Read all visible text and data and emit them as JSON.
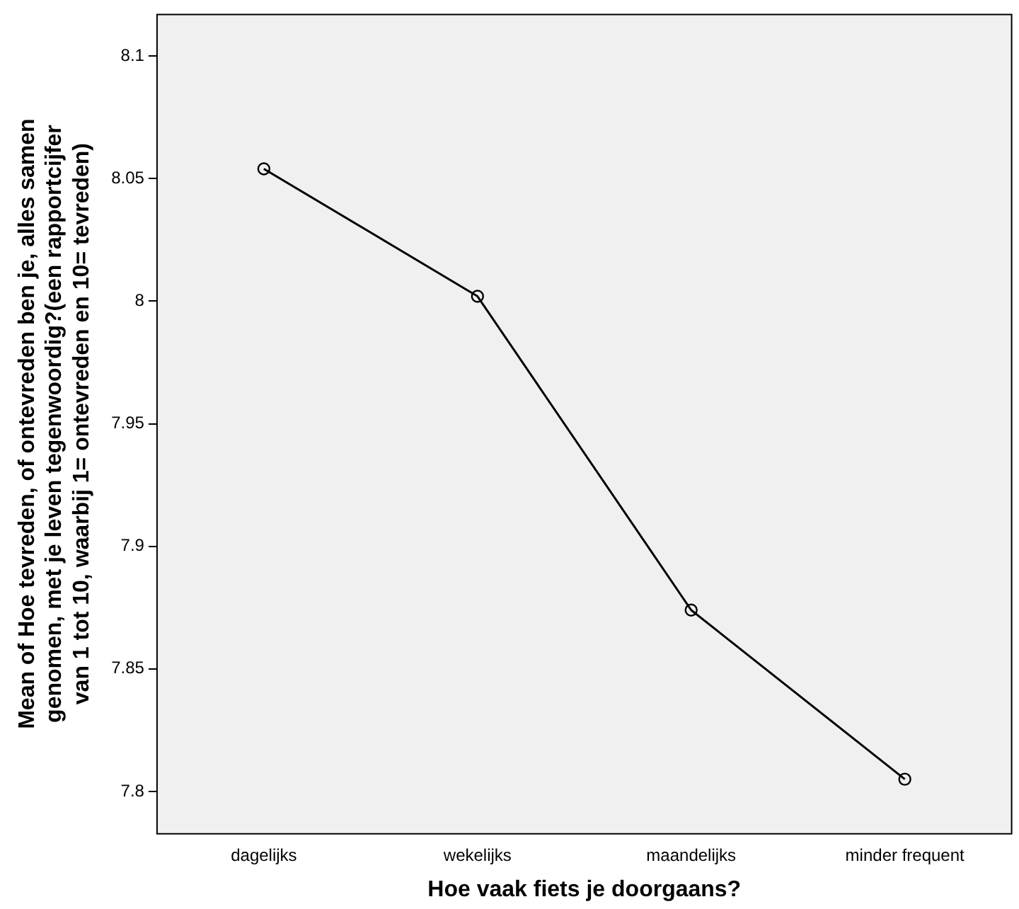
{
  "chart_data": {
    "type": "line",
    "xlabel": "Hoe vaak fiets je doorgaans?",
    "ylabel": "Mean of Hoe tevreden, of ontevreden ben je, alles samen genomen, met je leven tegenwoordig?(een rapportcijfer van 1 tot 10, waarbij 1= ontevreden en 10= tevreden)",
    "categories": [
      "dagelijks",
      "wekelijks",
      "maandelijks",
      "minder frequent"
    ],
    "series": [
      {
        "color": "#000000",
        "values": [
          8.054,
          8.002,
          7.874,
          7.805
        ]
      }
    ],
    "ylim": [
      7.783,
      8.117
    ],
    "yticks": [
      7.8,
      7.85,
      7.9,
      7.95,
      8,
      8.05,
      8.1
    ],
    "grid": false,
    "legend": false,
    "marker": "circle",
    "line_style": "solid"
  }
}
